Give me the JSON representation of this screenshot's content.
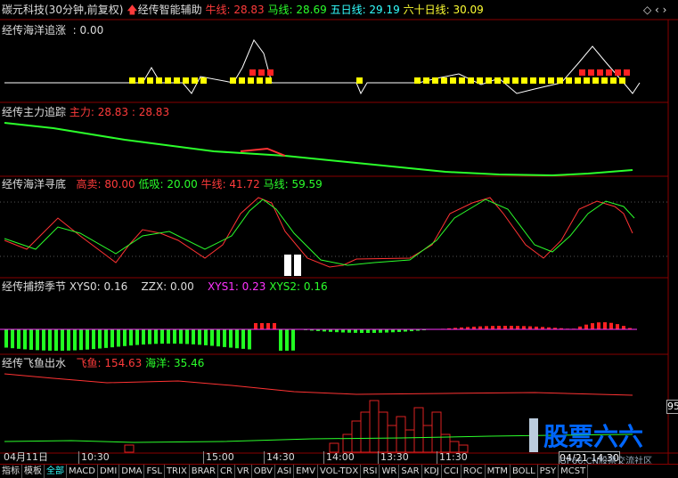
{
  "header": {
    "title": "碳元科技(30分钟,前复权)",
    "assistant": "经传智能辅助",
    "ma": [
      "牛线: 28.83",
      "马线: 28.69",
      "五日线: 29.19",
      "六十日线: 30.09"
    ]
  },
  "panels": [
    {
      "title": "经传海洋追涨",
      "items": [
        ": 0.00"
      ]
    },
    {
      "title": "经传主力追踪",
      "items": [
        "主力: 28.83 : 28.83"
      ]
    },
    {
      "title": "经传海洋寻底",
      "items": [
        "高卖: 80.00",
        "低吸: 20.00",
        "牛线: 41.72",
        "马线: 59.59"
      ]
    },
    {
      "title": "经传捕捞季节",
      "items": [
        "XYS0: 0.16",
        "ZZX: 0.00",
        "XYS1: 0.23",
        "XYS2: 0.16"
      ]
    },
    {
      "title": "经传飞鱼出水",
      "items": [
        "飞鱼: 154.63",
        "海洋: 35.46"
      ]
    }
  ],
  "axis": {
    "dates": [
      "04月11日",
      "10:30",
      "15:00",
      "14:30",
      "14:00",
      "13:30",
      "11:30"
    ],
    "cursor": "04/21 14:30",
    "price": "95"
  },
  "tabs": [
    "指标",
    "模板",
    "全部",
    "MACD",
    "DMI",
    "DMA",
    "FSL",
    "TRIX",
    "BRAR",
    "CR",
    "VR",
    "OBV",
    "ASI",
    "EMV",
    "VOL-TDX",
    "RSI",
    "WR",
    "SAR",
    "KDJ",
    "CCI",
    "ROC",
    "MTM",
    "BOLL",
    "PSY",
    "MCST"
  ],
  "watermark": {
    "brand": "股票六六",
    "site": "GP66.CN股票交流社区"
  }
}
